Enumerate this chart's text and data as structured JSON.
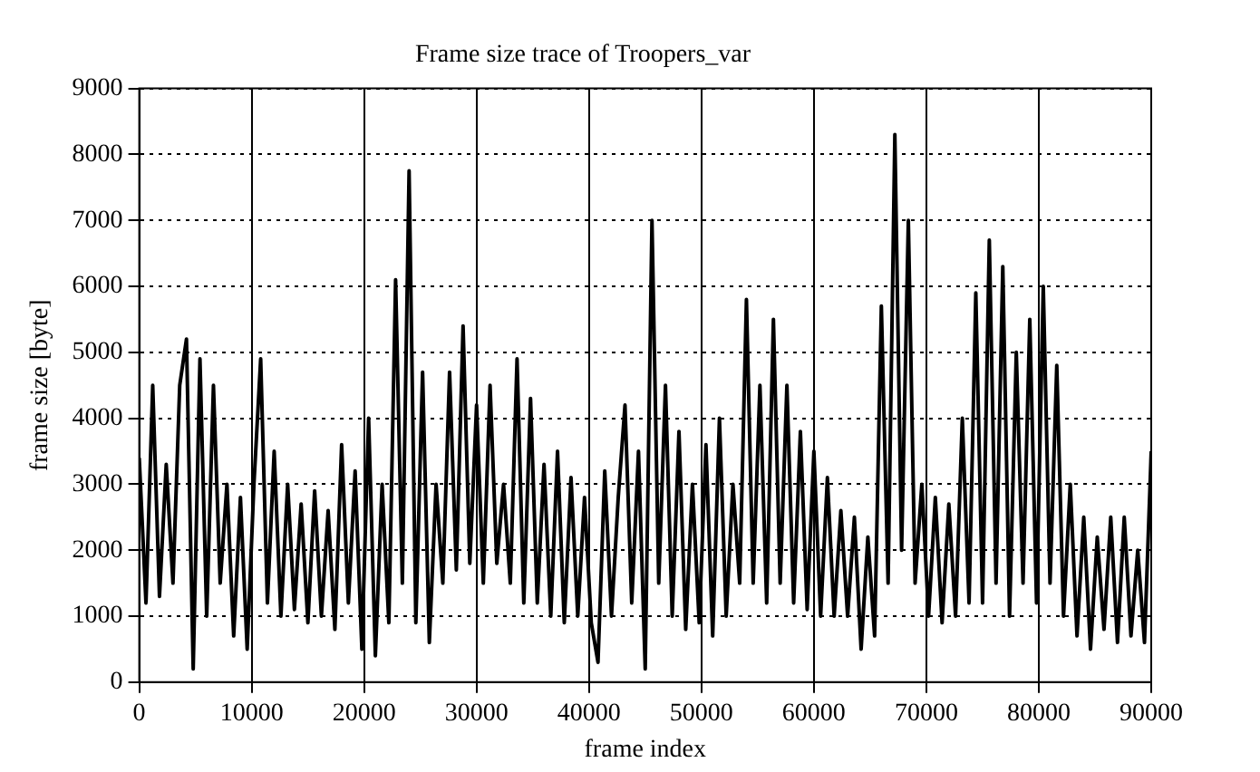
{
  "chart_data": {
    "type": "line",
    "title": "Frame size trace of Troopers_var",
    "xlabel": "frame index",
    "ylabel": "frame size [byte]",
    "x": [
      0,
      600,
      1200,
      1800,
      2400,
      3000,
      3600,
      4200,
      4800,
      5400,
      6000,
      6600,
      7200,
      7800,
      8400,
      9000,
      9600,
      10200,
      10800,
      11400,
      12000,
      12600,
      13200,
      13800,
      14400,
      15000,
      15600,
      16200,
      16800,
      17400,
      18000,
      18600,
      19200,
      19800,
      20400,
      21000,
      21600,
      22200,
      22800,
      23400,
      24000,
      24600,
      25200,
      25800,
      26400,
      27000,
      27600,
      28200,
      28800,
      29400,
      30000,
      30600,
      31200,
      31800,
      32400,
      33000,
      33600,
      34200,
      34800,
      35400,
      36000,
      36600,
      37200,
      37800,
      38400,
      39000,
      39600,
      40200,
      40800,
      41400,
      42000,
      42600,
      43200,
      43800,
      44400,
      45000,
      45600,
      46200,
      46800,
      47400,
      48000,
      48600,
      49200,
      49800,
      50400,
      51000,
      51600,
      52200,
      52800,
      53400,
      54000,
      54600,
      55200,
      55800,
      56400,
      57000,
      57600,
      58200,
      58800,
      59400,
      60000,
      60600,
      61200,
      61800,
      62400,
      63000,
      63600,
      64200,
      64800,
      65400,
      66000,
      66600,
      67200,
      67800,
      68400,
      69000,
      69600,
      70200,
      70800,
      71400,
      72000,
      72600,
      73200,
      73800,
      74400,
      75000,
      75600,
      76200,
      76800,
      77400,
      78000,
      78600,
      79200,
      79800,
      80400,
      81000,
      81600,
      82200,
      82800,
      83400,
      84000,
      84600,
      85200,
      85800,
      86400,
      87000,
      87600,
      88200,
      88800,
      89400,
      90000
    ],
    "series": [
      {
        "color": "#000000",
        "values": [
          3400,
          1200,
          4500,
          1300,
          3300,
          1500,
          4500,
          5200,
          200,
          4900,
          1000,
          4500,
          1500,
          3000,
          700,
          2800,
          500,
          3000,
          4900,
          1200,
          3500,
          1000,
          3000,
          1100,
          2700,
          900,
          2900,
          1000,
          2600,
          800,
          3600,
          1200,
          3200,
          500,
          4000,
          400,
          3000,
          900,
          6100,
          1500,
          7750,
          900,
          4700,
          600,
          3000,
          1500,
          4700,
          1700,
          5400,
          1800,
          4200,
          1500,
          4500,
          1800,
          3000,
          1500,
          4900,
          1200,
          4300,
          1200,
          3300,
          1000,
          3500,
          900,
          3100,
          1000,
          2800,
          900,
          300,
          3200,
          1000,
          2800,
          4200,
          1200,
          3500,
          200,
          7000,
          1500,
          4500,
          1000,
          3800,
          800,
          3000,
          900,
          3600,
          700,
          4000,
          1000,
          3000,
          1500,
          5800,
          1500,
          4500,
          1200,
          5500,
          1500,
          4500,
          1200,
          3800,
          1100,
          3500,
          1000,
          3100,
          1000,
          2600,
          1000,
          2500,
          500,
          2200,
          700,
          5700,
          1500,
          8300,
          2000,
          7000,
          1500,
          3000,
          1000,
          2800,
          900,
          2700,
          1000,
          4000,
          1200,
          5900,
          1200,
          6700,
          1500,
          6300,
          1000,
          5000,
          1500,
          5500,
          1200,
          6000,
          1500,
          4800,
          1000,
          3000,
          700,
          2500,
          500,
          2200,
          800,
          2500,
          600,
          2500,
          700,
          2000,
          600,
          3500
        ]
      }
    ],
    "xlim": [
      0,
      90000
    ],
    "xticks": [
      0,
      10000,
      20000,
      30000,
      40000,
      50000,
      60000,
      70000,
      80000,
      90000
    ],
    "ylim": [
      0,
      9000
    ],
    "yticks": [
      0,
      1000,
      2000,
      3000,
      4000,
      5000,
      6000,
      7000,
      8000,
      9000
    ],
    "grid": true,
    "legend": false,
    "marker": "none",
    "line_style": "solid"
  }
}
